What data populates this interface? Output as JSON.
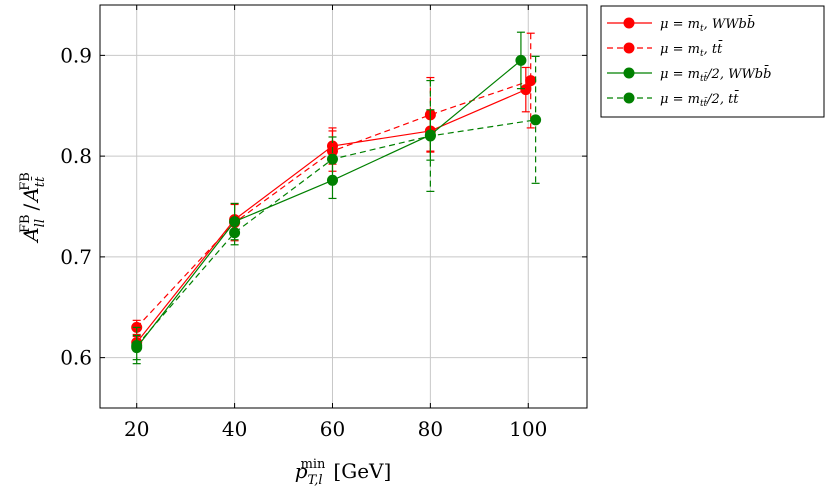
{
  "chart_data": {
    "type": "line",
    "xlabel": "p_{T,l}^{min} [GeV]",
    "xlabel_parts": {
      "base": "p",
      "sup": "min",
      "sub": "T,l",
      "unit": "[GeV]"
    },
    "ylabel": "A_{ll}^{FB} / A_{tt̄}^{FB}",
    "ylabel_parts": {
      "num_base": "A",
      "num_sup": "FB",
      "num_sub": "ll",
      "sep": "/",
      "den_base": "A",
      "den_sup": "FB",
      "den_sub": "tt̄"
    },
    "xlim": [
      12.5,
      112
    ],
    "ylim": [
      0.55,
      0.95
    ],
    "xticks": [
      20,
      40,
      60,
      80,
      100
    ],
    "yticks": [
      0.6,
      0.7,
      0.8,
      0.9
    ],
    "xtick_labels": [
      "20",
      "40",
      "60",
      "80",
      "100"
    ],
    "ytick_labels": [
      "0.6",
      "0.7",
      "0.8",
      "0.9"
    ],
    "grid": true,
    "legend_position": "outside-top-right",
    "series": [
      {
        "name": "μ = m_t, WWbb̄",
        "legend": {
          "mu": "μ = m",
          "sub": "t",
          "rest": ", WWbb̄"
        },
        "color": "#ff0000",
        "dashed": false,
        "x": [
          20,
          40,
          60,
          80,
          99.5
        ],
        "y": [
          0.615,
          0.737,
          0.81,
          0.825,
          0.866
        ],
        "err": [
          0.006,
          0.016,
          0.018,
          0.02,
          0.022
        ]
      },
      {
        "name": "μ = m_t, tt̄",
        "legend": {
          "mu": "μ = m",
          "sub": "t",
          "rest": ", tt̄"
        },
        "color": "#ff0000",
        "dashed": true,
        "x": [
          20,
          40,
          60,
          80,
          100.5
        ],
        "y": [
          0.63,
          0.734,
          0.805,
          0.841,
          0.875
        ],
        "err": [
          0.007,
          0.018,
          0.02,
          0.037,
          0.047
        ]
      },
      {
        "name": "μ = m_tt̄/2, WWbb̄",
        "legend": {
          "mu": "μ = m",
          "sub": "tt̄",
          "rest": "/2, WWbb̄"
        },
        "color": "#008000",
        "dashed": false,
        "x": [
          20,
          40,
          60,
          80,
          98.5
        ],
        "y": [
          0.61,
          0.735,
          0.776,
          0.821,
          0.895
        ],
        "err": [
          0.012,
          0.018,
          0.018,
          0.025,
          0.028
        ]
      },
      {
        "name": "μ = m_tt̄/2, tt̄",
        "legend": {
          "mu": "μ = m",
          "sub": "tt̄",
          "rest": "/2, tt̄"
        },
        "color": "#008000",
        "dashed": true,
        "x": [
          20,
          40,
          60,
          80,
          101.5
        ],
        "y": [
          0.612,
          0.724,
          0.797,
          0.82,
          0.836
        ],
        "err": [
          0.018,
          0.012,
          0.022,
          0.055,
          0.063
        ]
      }
    ]
  }
}
